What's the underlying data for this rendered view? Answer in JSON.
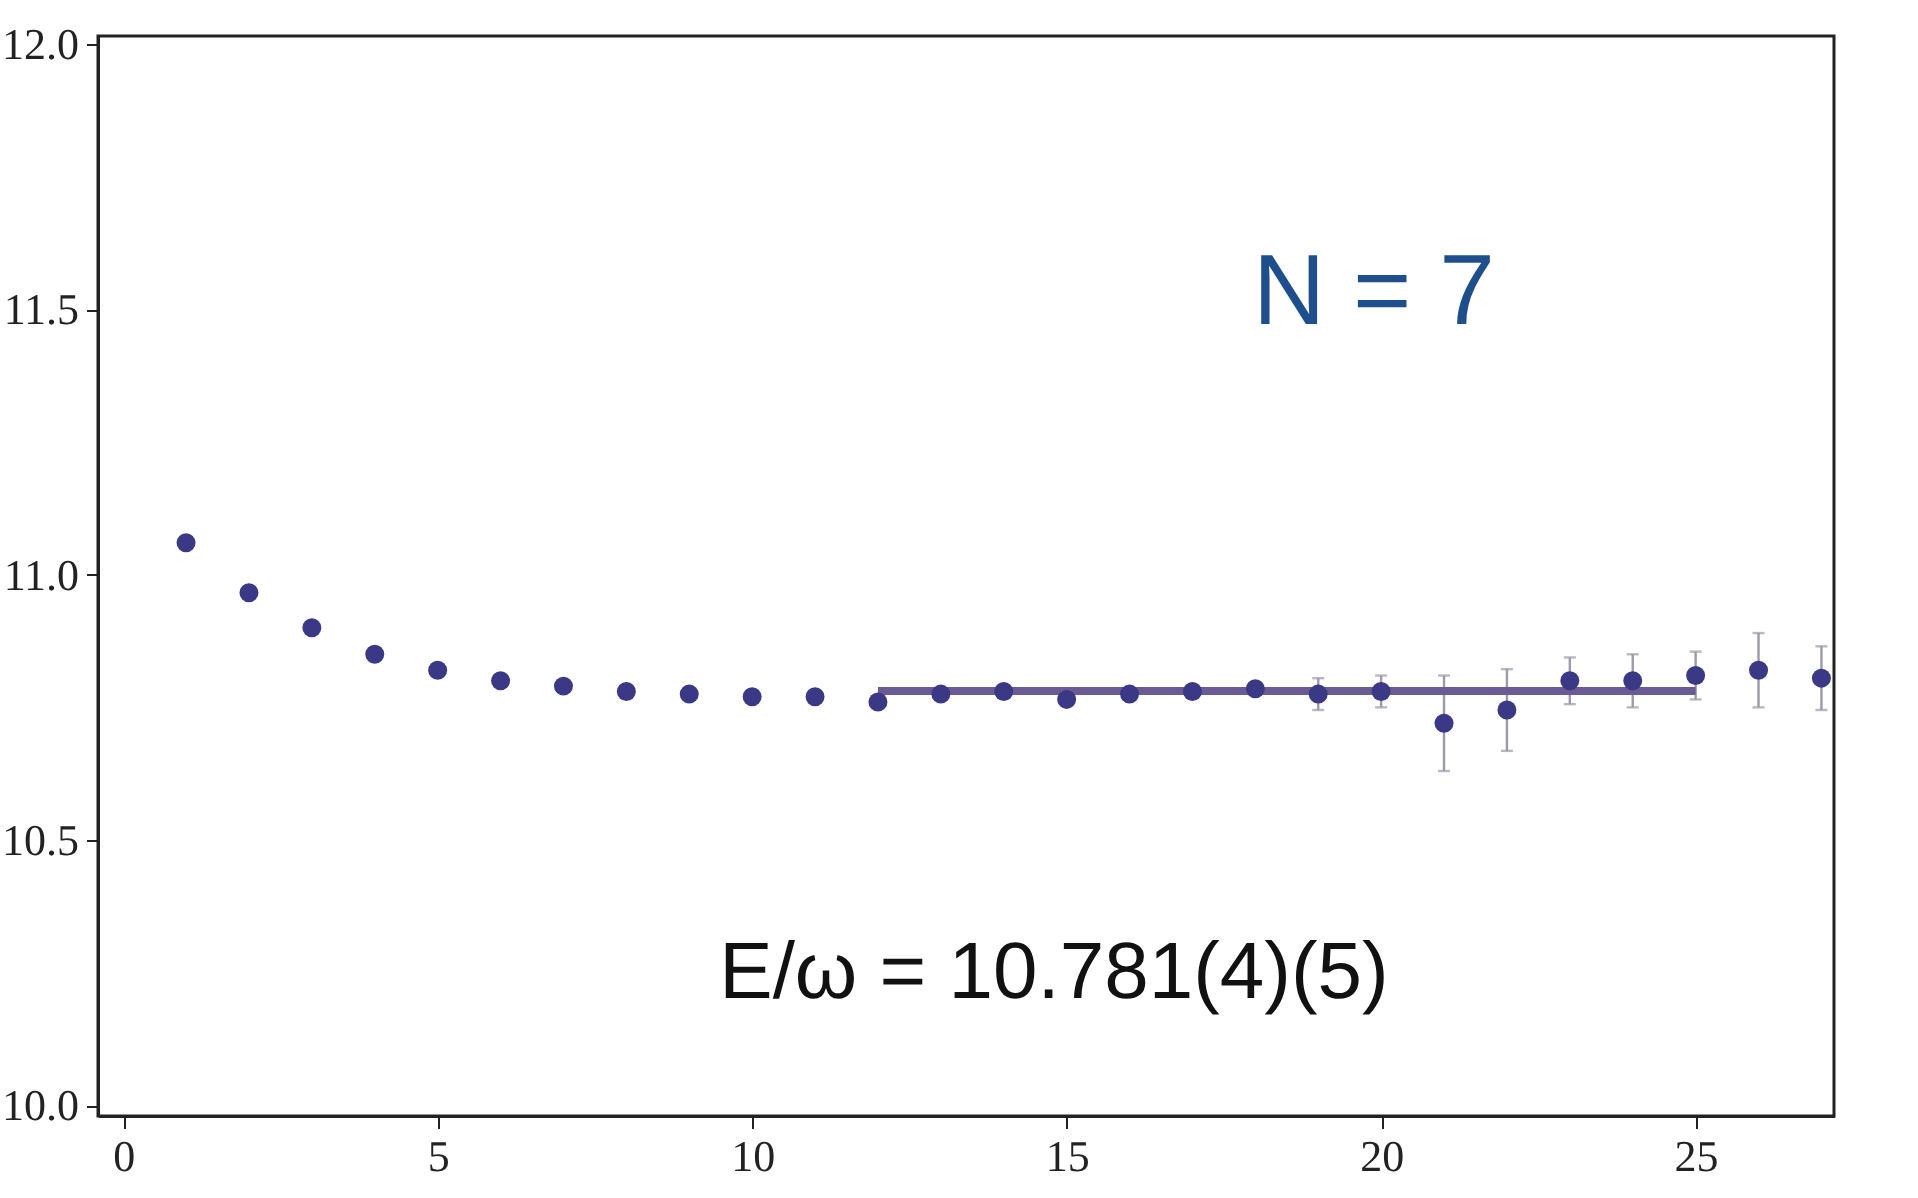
{
  "chart_data": {
    "type": "scatter",
    "x": [
      1,
      2,
      3,
      4,
      5,
      6,
      7,
      8,
      9,
      10,
      11,
      12,
      13,
      14,
      15,
      16,
      17,
      18,
      19,
      20,
      21,
      22,
      23,
      24,
      25,
      26,
      27
    ],
    "series": [
      {
        "color": "#3b3886",
        "marker": "circle",
        "values": [
          11.06,
          10.966,
          10.9,
          10.85,
          10.82,
          10.8,
          10.79,
          10.78,
          10.775,
          10.77,
          10.77,
          10.76,
          10.775,
          10.78,
          10.765,
          10.775,
          10.78,
          10.785,
          10.775,
          10.78,
          10.72,
          10.745,
          10.8,
          10.8,
          10.81,
          10.82,
          10.805
        ],
        "errors": [
          null,
          null,
          null,
          null,
          null,
          null,
          null,
          null,
          null,
          null,
          null,
          null,
          null,
          null,
          null,
          null,
          null,
          0.01,
          0.03,
          0.03,
          0.09,
          0.077,
          0.044,
          0.05,
          0.045,
          0.07,
          0.06
        ]
      },
      {
        "type": "line",
        "marker": "none",
        "color": "#6b5b95",
        "x": [
          12,
          25
        ],
        "values": [
          10.781,
          10.781
        ]
      }
    ],
    "xlim": [
      -0.4,
      27.2
    ],
    "ylim": [
      9.98,
      12.015
    ],
    "xticks": [
      0,
      5,
      10,
      15,
      20,
      25
    ],
    "yticks": [
      {
        "value": 10.0,
        "label": "10.0"
      },
      {
        "value": 10.5,
        "label": "10.5"
      },
      {
        "value": 11.0,
        "label": "11.0"
      },
      {
        "value": 11.5,
        "label": "11.5"
      },
      {
        "value": 12.0,
        "label": "12.0"
      }
    ],
    "grid": false,
    "annotations": [
      "N = 7",
      "E/ω = 10.781(4)(5)"
    ]
  }
}
